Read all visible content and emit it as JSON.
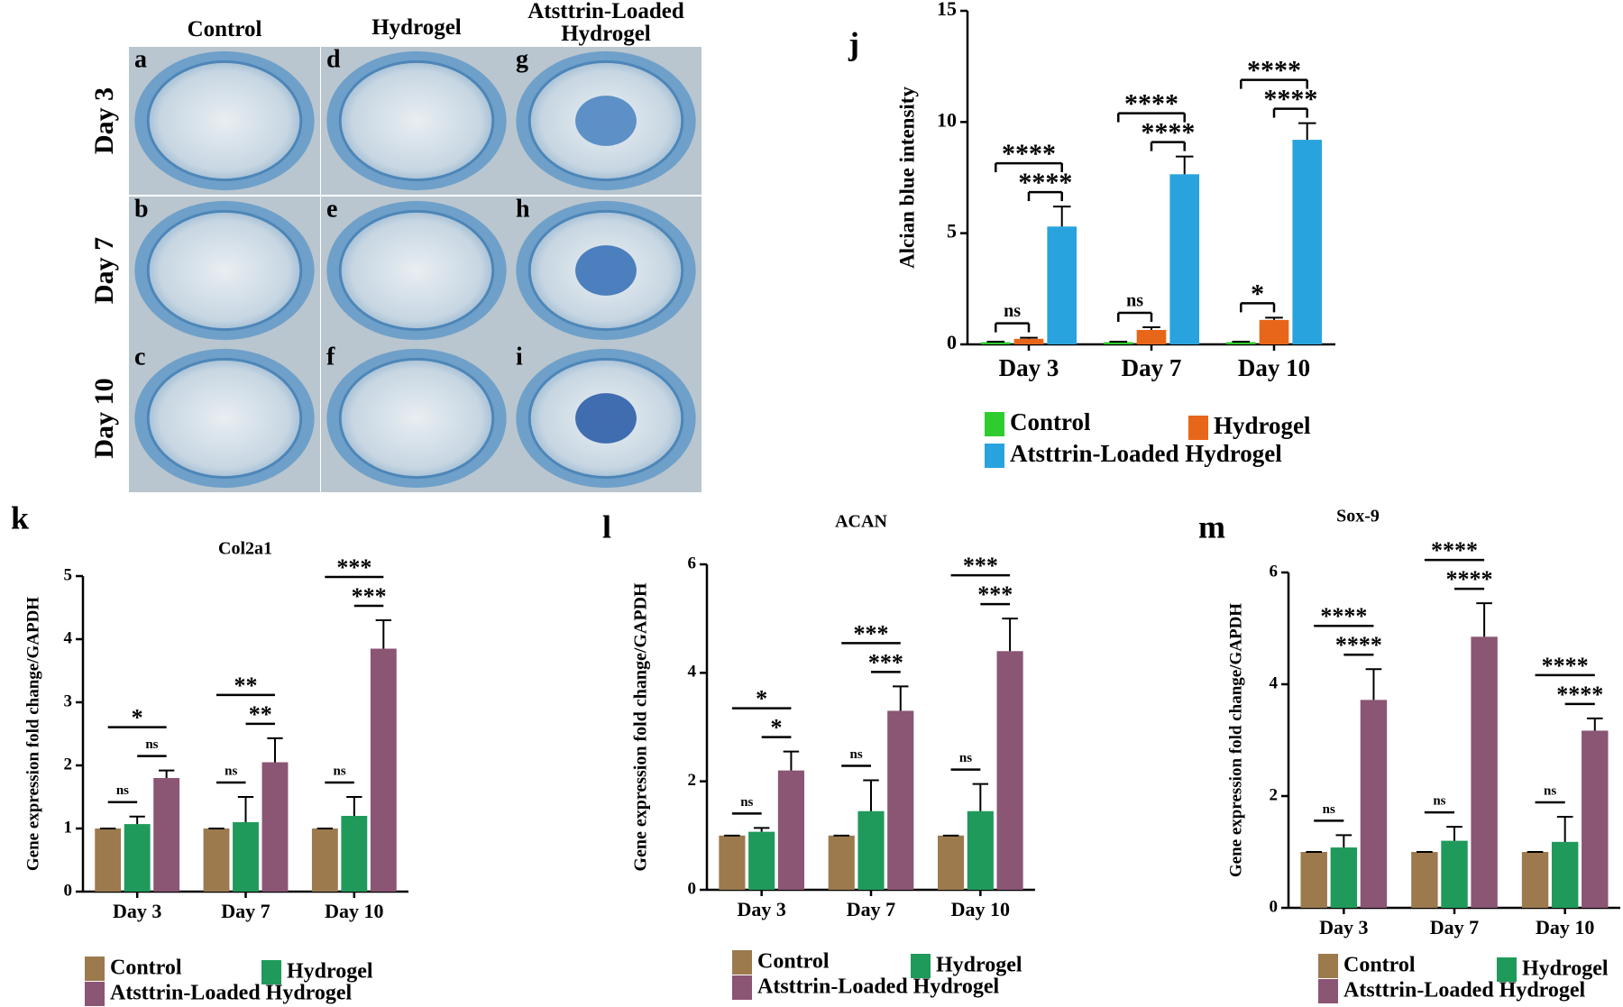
{
  "image_panel": {
    "columns": [
      "Control",
      "Hydrogel",
      "Atsttrin-Loaded Hydrogel"
    ],
    "rows": [
      "Day 3",
      "Day 7",
      "Day 10"
    ],
    "panel_letters": [
      [
        "a",
        "d",
        "g"
      ],
      [
        "b",
        "e",
        "h"
      ],
      [
        "c",
        "f",
        "i"
      ]
    ]
  },
  "chart_data": [
    {
      "type": "bar",
      "panel_label": "j",
      "y_label": "Alcian blue intensity",
      "categories": [
        "Day 3",
        "Day 7",
        "Day 10"
      ],
      "series": [
        {
          "name": "Control",
          "color": "#2ecc2e",
          "values": [
            0.1,
            0.1,
            0.1
          ],
          "errors": [
            0.02,
            0.02,
            0.02
          ]
        },
        {
          "name": "Hydrogel",
          "color": "#e8661a",
          "values": [
            0.25,
            0.65,
            1.1
          ],
          "errors": [
            0.05,
            0.12,
            0.1
          ]
        },
        {
          "name": "Atsttrin-Loaded Hydrogel",
          "color": "#29a3dd",
          "values": [
            5.3,
            7.65,
            9.2
          ],
          "errors": [
            0.9,
            0.8,
            0.75
          ]
        }
      ],
      "annotations": [
        {
          "category": 0,
          "between": [
            0,
            1
          ],
          "label": "ns"
        },
        {
          "category": 0,
          "between": [
            1,
            2
          ],
          "label": "****"
        },
        {
          "category": 0,
          "between": [
            0,
            2
          ],
          "label": "****"
        },
        {
          "category": 1,
          "between": [
            0,
            1
          ],
          "label": "ns"
        },
        {
          "category": 1,
          "between": [
            1,
            2
          ],
          "label": "****"
        },
        {
          "category": 1,
          "between": [
            0,
            2
          ],
          "label": "****"
        },
        {
          "category": 2,
          "between": [
            0,
            1
          ],
          "label": "*"
        },
        {
          "category": 2,
          "between": [
            1,
            2
          ],
          "label": "****"
        },
        {
          "category": 2,
          "between": [
            0,
            2
          ],
          "label": "****"
        }
      ],
      "ylim": [
        0,
        15
      ],
      "yticks": [
        0,
        5,
        10,
        15
      ]
    },
    {
      "type": "bar",
      "panel_label": "k",
      "title": "Col2a1",
      "y_label": "Gene expression fold change/GAPDH",
      "categories": [
        "Day 3",
        "Day 7",
        "Day 10"
      ],
      "series": [
        {
          "name": "Control",
          "color": "#9c7a4e",
          "values": [
            1,
            1,
            1
          ],
          "errors": [
            0,
            0,
            0
          ]
        },
        {
          "name": "Hydrogel",
          "color": "#1f9a5b",
          "values": [
            1.07,
            1.1,
            1.2
          ],
          "errors": [
            0.12,
            0.4,
            0.3
          ]
        },
        {
          "name": "Atsttrin-Loaded Hydrogel",
          "color": "#8b5574",
          "values": [
            1.8,
            2.05,
            3.85
          ],
          "errors": [
            0.12,
            0.38,
            0.45
          ]
        }
      ],
      "annotations": [
        {
          "category": 0,
          "between": [
            0,
            1
          ],
          "label": "ns"
        },
        {
          "category": 0,
          "between": [
            1,
            2
          ],
          "label": "ns"
        },
        {
          "category": 0,
          "between": [
            0,
            2
          ],
          "label": "*"
        },
        {
          "category": 1,
          "between": [
            0,
            1
          ],
          "label": "ns"
        },
        {
          "category": 1,
          "between": [
            1,
            2
          ],
          "label": "**"
        },
        {
          "category": 1,
          "between": [
            0,
            2
          ],
          "label": "**"
        },
        {
          "category": 2,
          "between": [
            0,
            1
          ],
          "label": "ns"
        },
        {
          "category": 2,
          "between": [
            1,
            2
          ],
          "label": "***"
        },
        {
          "category": 2,
          "between": [
            0,
            2
          ],
          "label": "***"
        }
      ],
      "ylim": [
        0,
        5
      ],
      "yticks": [
        0,
        1,
        2,
        3,
        4,
        5
      ]
    },
    {
      "type": "bar",
      "panel_label": "l",
      "title": "ACAN",
      "y_label": "Gene expression fold change/GAPDH",
      "categories": [
        "Day 3",
        "Day 7",
        "Day 10"
      ],
      "series": [
        {
          "name": "Control",
          "color": "#9c7a4e",
          "values": [
            1,
            1,
            1
          ],
          "errors": [
            0,
            0,
            0
          ]
        },
        {
          "name": "Hydrogel",
          "color": "#1f9a5b",
          "values": [
            1.07,
            1.45,
            1.45
          ],
          "errors": [
            0.07,
            0.57,
            0.5
          ]
        },
        {
          "name": "Atsttrin-Loaded Hydrogel",
          "color": "#8b5574",
          "values": [
            2.2,
            3.3,
            4.4
          ],
          "errors": [
            0.35,
            0.45,
            0.6
          ]
        }
      ],
      "annotations": [
        {
          "category": 0,
          "between": [
            0,
            1
          ],
          "label": "ns"
        },
        {
          "category": 0,
          "between": [
            1,
            2
          ],
          "label": "*"
        },
        {
          "category": 0,
          "between": [
            0,
            2
          ],
          "label": "*"
        },
        {
          "category": 1,
          "between": [
            0,
            1
          ],
          "label": "ns"
        },
        {
          "category": 1,
          "between": [
            1,
            2
          ],
          "label": "***"
        },
        {
          "category": 1,
          "between": [
            0,
            2
          ],
          "label": "***"
        },
        {
          "category": 2,
          "between": [
            0,
            1
          ],
          "label": "ns"
        },
        {
          "category": 2,
          "between": [
            1,
            2
          ],
          "label": "***"
        },
        {
          "category": 2,
          "between": [
            0,
            2
          ],
          "label": "***"
        }
      ],
      "ylim": [
        0,
        6
      ],
      "yticks": [
        0,
        2,
        4,
        6
      ]
    },
    {
      "type": "bar",
      "panel_label": "m",
      "title": "Sox-9",
      "y_label": "Gene expression fold change/GAPDH",
      "categories": [
        "Day 3",
        "Day 7",
        "Day 10"
      ],
      "series": [
        {
          "name": "Control",
          "color": "#9c7a4e",
          "values": [
            1,
            1,
            1
          ],
          "errors": [
            0,
            0,
            0
          ]
        },
        {
          "name": "Hydrogel",
          "color": "#1f9a5b",
          "values": [
            1.08,
            1.2,
            1.18
          ],
          "errors": [
            0.22,
            0.25,
            0.45
          ]
        },
        {
          "name": "Atsttrin-Loaded Hydrogel",
          "color": "#8b5574",
          "values": [
            3.72,
            4.85,
            3.17
          ],
          "errors": [
            0.55,
            0.6,
            0.22
          ]
        }
      ],
      "annotations": [
        {
          "category": 0,
          "between": [
            0,
            1
          ],
          "label": "ns"
        },
        {
          "category": 0,
          "between": [
            1,
            2
          ],
          "label": "****"
        },
        {
          "category": 0,
          "between": [
            0,
            2
          ],
          "label": "****"
        },
        {
          "category": 1,
          "between": [
            0,
            1
          ],
          "label": "ns"
        },
        {
          "category": 1,
          "between": [
            1,
            2
          ],
          "label": "****"
        },
        {
          "category": 1,
          "between": [
            0,
            2
          ],
          "label": "****"
        },
        {
          "category": 2,
          "between": [
            0,
            1
          ],
          "label": "ns"
        },
        {
          "category": 2,
          "between": [
            1,
            2
          ],
          "label": "****"
        },
        {
          "category": 2,
          "between": [
            0,
            2
          ],
          "label": "****"
        }
      ],
      "ylim": [
        0,
        6
      ],
      "yticks": [
        0,
        2,
        4,
        6
      ]
    }
  ]
}
